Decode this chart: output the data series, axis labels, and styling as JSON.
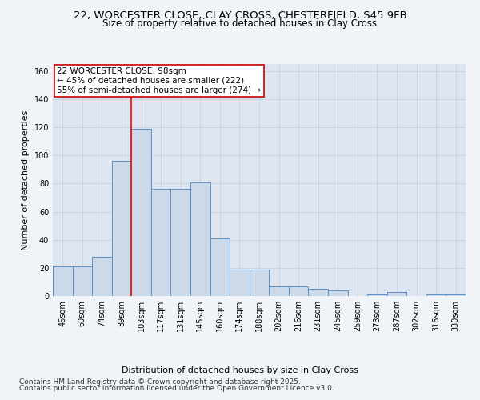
{
  "title_line1": "22, WORCESTER CLOSE, CLAY CROSS, CHESTERFIELD, S45 9FB",
  "title_line2": "Size of property relative to detached houses in Clay Cross",
  "xlabel": "Distribution of detached houses by size in Clay Cross",
  "ylabel": "Number of detached properties",
  "categories": [
    "46sqm",
    "60sqm",
    "74sqm",
    "89sqm",
    "103sqm",
    "117sqm",
    "131sqm",
    "145sqm",
    "160sqm",
    "174sqm",
    "188sqm",
    "202sqm",
    "216sqm",
    "231sqm",
    "245sqm",
    "259sqm",
    "273sqm",
    "287sqm",
    "302sqm",
    "316sqm",
    "330sqm"
  ],
  "values": [
    21,
    21,
    28,
    96,
    119,
    76,
    76,
    81,
    41,
    19,
    19,
    7,
    7,
    5,
    4,
    0,
    1,
    3,
    0,
    1,
    1
  ],
  "bar_color": "#ccd9e8",
  "bar_edge_color": "#5b8fc7",
  "grid_color": "#c8d0dc",
  "background_color": "#dde6f0",
  "fig_background_color": "#f0f4f8",
  "property_label": "22 WORCESTER CLOSE: 98sqm",
  "annotation_line1": "22 WORCESTER CLOSE: 98sqm",
  "annotation_line2": "← 45% of detached houses are smaller (222)",
  "annotation_line3": "55% of semi-detached houses are larger (274) →",
  "red_line_x": 3.5,
  "ylim": [
    0,
    165
  ],
  "yticks": [
    0,
    20,
    40,
    60,
    80,
    100,
    120,
    140,
    160
  ],
  "footer_line1": "Contains HM Land Registry data © Crown copyright and database right 2025.",
  "footer_line2": "Contains public sector information licensed under the Open Government Licence v3.0.",
  "annotation_box_color": "#ffffff",
  "annotation_box_edge": "#cc0000",
  "title_fontsize": 9.5,
  "subtitle_fontsize": 8.5,
  "axis_label_fontsize": 8,
  "tick_fontsize": 7,
  "annotation_fontsize": 7.5,
  "footer_fontsize": 6.5
}
